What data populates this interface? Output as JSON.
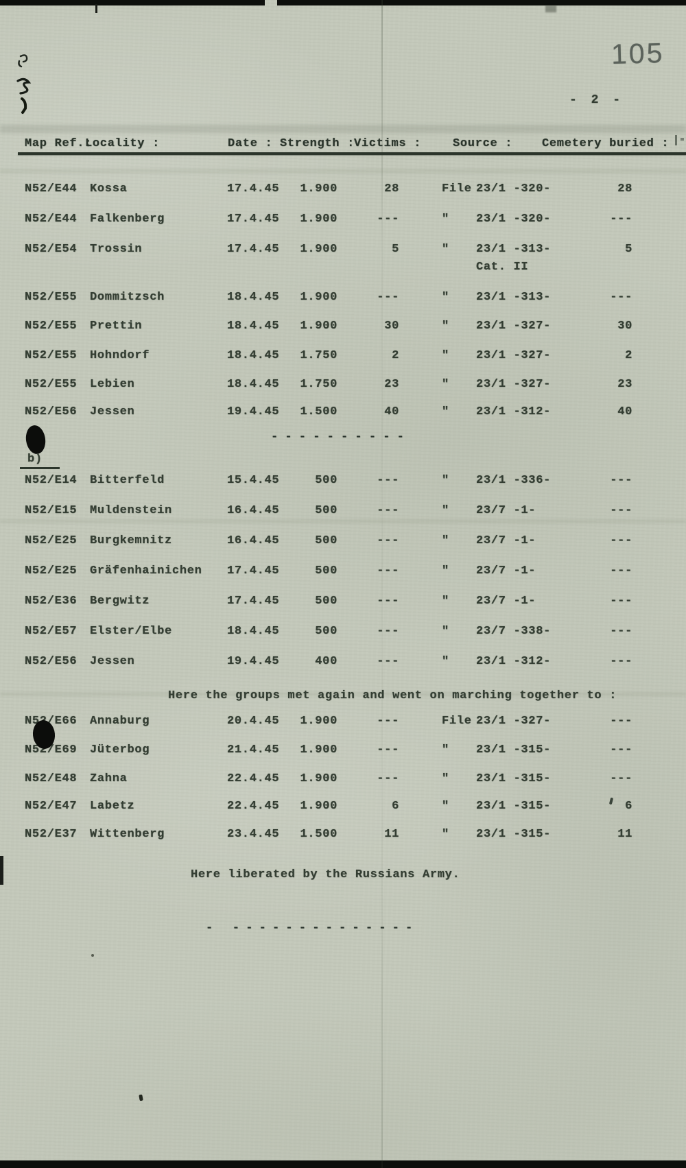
{
  "page": {
    "stamp_number": "105",
    "page_label": "- 2 -"
  },
  "table": {
    "headers": {
      "map_ref": "Map Ref.:",
      "locality": "Locality :",
      "date": "Date :",
      "strength": "Strength :",
      "victims": "Victims :",
      "source": "Source :",
      "cemetery": "Cemetery buried :"
    },
    "sections": [
      {
        "label": "",
        "rows": [
          {
            "map_ref": "N52/E44",
            "locality": "Kossa",
            "date": "17.4.45",
            "strength": "1.900",
            "victims": "28",
            "source_prefix": "File",
            "source": "23/1 -320-",
            "source_note": "",
            "cemetery": "28"
          },
          {
            "map_ref": "N52/E44",
            "locality": "Falkenberg",
            "date": "17.4.45",
            "strength": "1.900",
            "victims": "---",
            "source_prefix": "\"",
            "source": "23/1 -320-",
            "source_note": "",
            "cemetery": "---"
          },
          {
            "map_ref": "N52/E54",
            "locality": "Trossin",
            "date": "17.4.45",
            "strength": "1.900",
            "victims": "5",
            "source_prefix": "\"",
            "source": "23/1 -313-",
            "source_note": "Cat. II",
            "cemetery": "5"
          },
          {
            "map_ref": "N52/E55",
            "locality": "Dommitzsch",
            "date": "18.4.45",
            "strength": "1.900",
            "victims": "---",
            "source_prefix": "\"",
            "source": "23/1 -313-",
            "source_note": "",
            "cemetery": "---"
          },
          {
            "map_ref": "N52/E55",
            "locality": "Prettin",
            "date": "18.4.45",
            "strength": "1.900",
            "victims": "30",
            "source_prefix": "\"",
            "source": "23/1 -327-",
            "source_note": "",
            "cemetery": "30"
          },
          {
            "map_ref": "N52/E55",
            "locality": "Hohndorf",
            "date": "18.4.45",
            "strength": "1.750",
            "victims": "2",
            "source_prefix": "\"",
            "source": "23/1 -327-",
            "source_note": "",
            "cemetery": "2"
          },
          {
            "map_ref": "N52/E55",
            "locality": "Lebien",
            "date": "18.4.45",
            "strength": "1.750",
            "victims": "23",
            "source_prefix": "\"",
            "source": "23/1 -327-",
            "source_note": "",
            "cemetery": "23"
          },
          {
            "map_ref": "N52/E56",
            "locality": "Jessen",
            "date": "19.4.45",
            "strength": "1.500",
            "victims": "40",
            "source_prefix": "\"",
            "source": "23/1 -312-",
            "source_note": "",
            "cemetery": "40"
          }
        ]
      },
      {
        "label": "b)",
        "rows": [
          {
            "map_ref": "N52/E14",
            "locality": "Bitterfeld",
            "date": "15.4.45",
            "strength": "500",
            "victims": "---",
            "source_prefix": "\"",
            "source": "23/1 -336-",
            "source_note": "",
            "cemetery": "---"
          },
          {
            "map_ref": "N52/E15",
            "locality": "Muldenstein",
            "date": "16.4.45",
            "strength": "500",
            "victims": "---",
            "source_prefix": "\"",
            "source": "23/7 -1-",
            "source_note": "",
            "cemetery": "---"
          },
          {
            "map_ref": "N52/E25",
            "locality": "Burgkemnitz",
            "date": "16.4.45",
            "strength": "500",
            "victims": "---",
            "source_prefix": "\"",
            "source": "23/7 -1-",
            "source_note": "",
            "cemetery": "---"
          },
          {
            "map_ref": "N52/E25",
            "locality": "Gräfenhainichen",
            "date": "17.4.45",
            "strength": "500",
            "victims": "---",
            "source_prefix": "\"",
            "source": "23/7 -1-",
            "source_note": "",
            "cemetery": "---"
          },
          {
            "map_ref": "N52/E36",
            "locality": "Bergwitz",
            "date": "17.4.45",
            "strength": "500",
            "victims": "---",
            "source_prefix": "\"",
            "source": "23/7 -1-",
            "source_note": "",
            "cemetery": "---"
          },
          {
            "map_ref": "N52/E57",
            "locality": "Elster/Elbe",
            "date": "18.4.45",
            "strength": "500",
            "victims": "---",
            "source_prefix": "\"",
            "source": "23/7 -338-",
            "source_note": "",
            "cemetery": "---"
          },
          {
            "map_ref": "N52/E56",
            "locality": "Jessen",
            "date": "19.4.45",
            "strength": "400",
            "victims": "---",
            "source_prefix": "\"",
            "source": "23/1 -312-",
            "source_note": "",
            "cemetery": "---"
          }
        ]
      },
      {
        "label": "",
        "rows": [
          {
            "map_ref": "N52/E66",
            "locality": "Annaburg",
            "date": "20.4.45",
            "strength": "1.900",
            "victims": "---",
            "source_prefix": "File",
            "source": "23/1 -327-",
            "source_note": "",
            "cemetery": "---"
          },
          {
            "map_ref": "N52/E69",
            "locality": "Jüterbog",
            "date": "21.4.45",
            "strength": "1.900",
            "victims": "---",
            "source_prefix": "\"",
            "source": "23/1 -315-",
            "source_note": "",
            "cemetery": "---"
          },
          {
            "map_ref": "N52/E48",
            "locality": "Zahna",
            "date": "22.4.45",
            "strength": "1.900",
            "victims": "---",
            "source_prefix": "\"",
            "source": "23/1 -315-",
            "source_note": "",
            "cemetery": "---"
          },
          {
            "map_ref": "N52/E47",
            "locality": "Labetz",
            "date": "22.4.45",
            "strength": "1.900",
            "victims": "6",
            "source_prefix": "\"",
            "source": "23/1 -315-",
            "source_note": "",
            "cemetery": "6"
          },
          {
            "map_ref": "N52/E37",
            "locality": "Wittenberg",
            "date": "23.4.45",
            "strength": "1.500",
            "victims": "11",
            "source_prefix": "\"",
            "source": "23/1 -315-",
            "source_note": "",
            "cemetery": "11"
          }
        ]
      }
    ]
  },
  "notes": {
    "regroup": "Here the groups met again and went on marching together to :",
    "liberation": "Here liberated by the Russians Army."
  },
  "separators": {
    "section_break": "- - - - - - - - - -",
    "end_break": "- --------------"
  },
  "colors": {
    "paper": "#c3c8ba",
    "ink": "#333d32",
    "stamp": "#5b625b",
    "scan_edge": "#0d0f0c"
  }
}
